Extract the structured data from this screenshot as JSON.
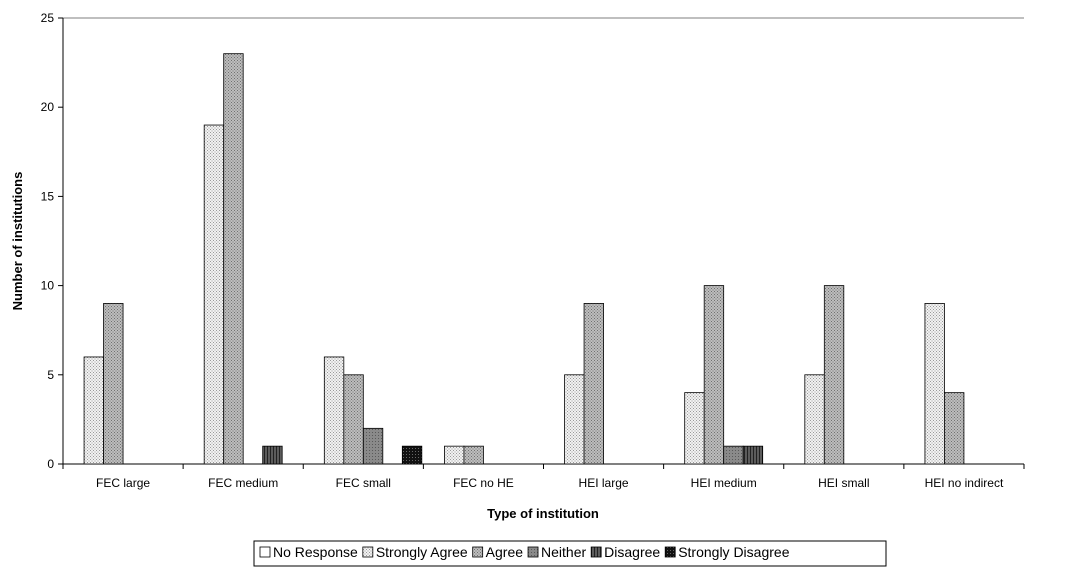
{
  "chart_data": {
    "type": "bar",
    "xlabel": "Type of institution",
    "ylabel": "Number of institutions",
    "ylim": [
      0,
      25
    ],
    "yticks": [
      0,
      5,
      10,
      15,
      20,
      25
    ],
    "grid": false,
    "legend_position": "bottom",
    "categories": [
      "FEC large",
      "FEC medium",
      "FEC small",
      "FEC no HE",
      "HEI large",
      "HEI medium",
      "HEI small",
      "HEI no indirect"
    ],
    "series": [
      {
        "name": "No Response",
        "values": [
          0,
          0,
          0,
          0,
          0,
          0,
          0,
          0
        ],
        "color": "#ffffff",
        "pattern": "none"
      },
      {
        "name": "Strongly Agree",
        "values": [
          6,
          19,
          6,
          1,
          5,
          4,
          5,
          9
        ],
        "color": "#e6e6e6",
        "pattern": "light-dots"
      },
      {
        "name": "Agree",
        "values": [
          9,
          23,
          5,
          1,
          9,
          10,
          10,
          4
        ],
        "color": "#a8a8a8",
        "pattern": "medium-dots"
      },
      {
        "name": "Neither",
        "values": [
          0,
          0,
          2,
          0,
          0,
          1,
          0,
          0
        ],
        "color": "#888888",
        "pattern": "dark-fill"
      },
      {
        "name": "Disagree",
        "values": [
          0,
          1,
          0,
          0,
          0,
          1,
          0,
          0
        ],
        "color": "#4a4a4a",
        "pattern": "dark-stripes"
      },
      {
        "name": "Strongly Disagree",
        "values": [
          0,
          0,
          1,
          0,
          0,
          0,
          0,
          0
        ],
        "color": "#1a1a1a",
        "pattern": "black-grid"
      }
    ]
  }
}
